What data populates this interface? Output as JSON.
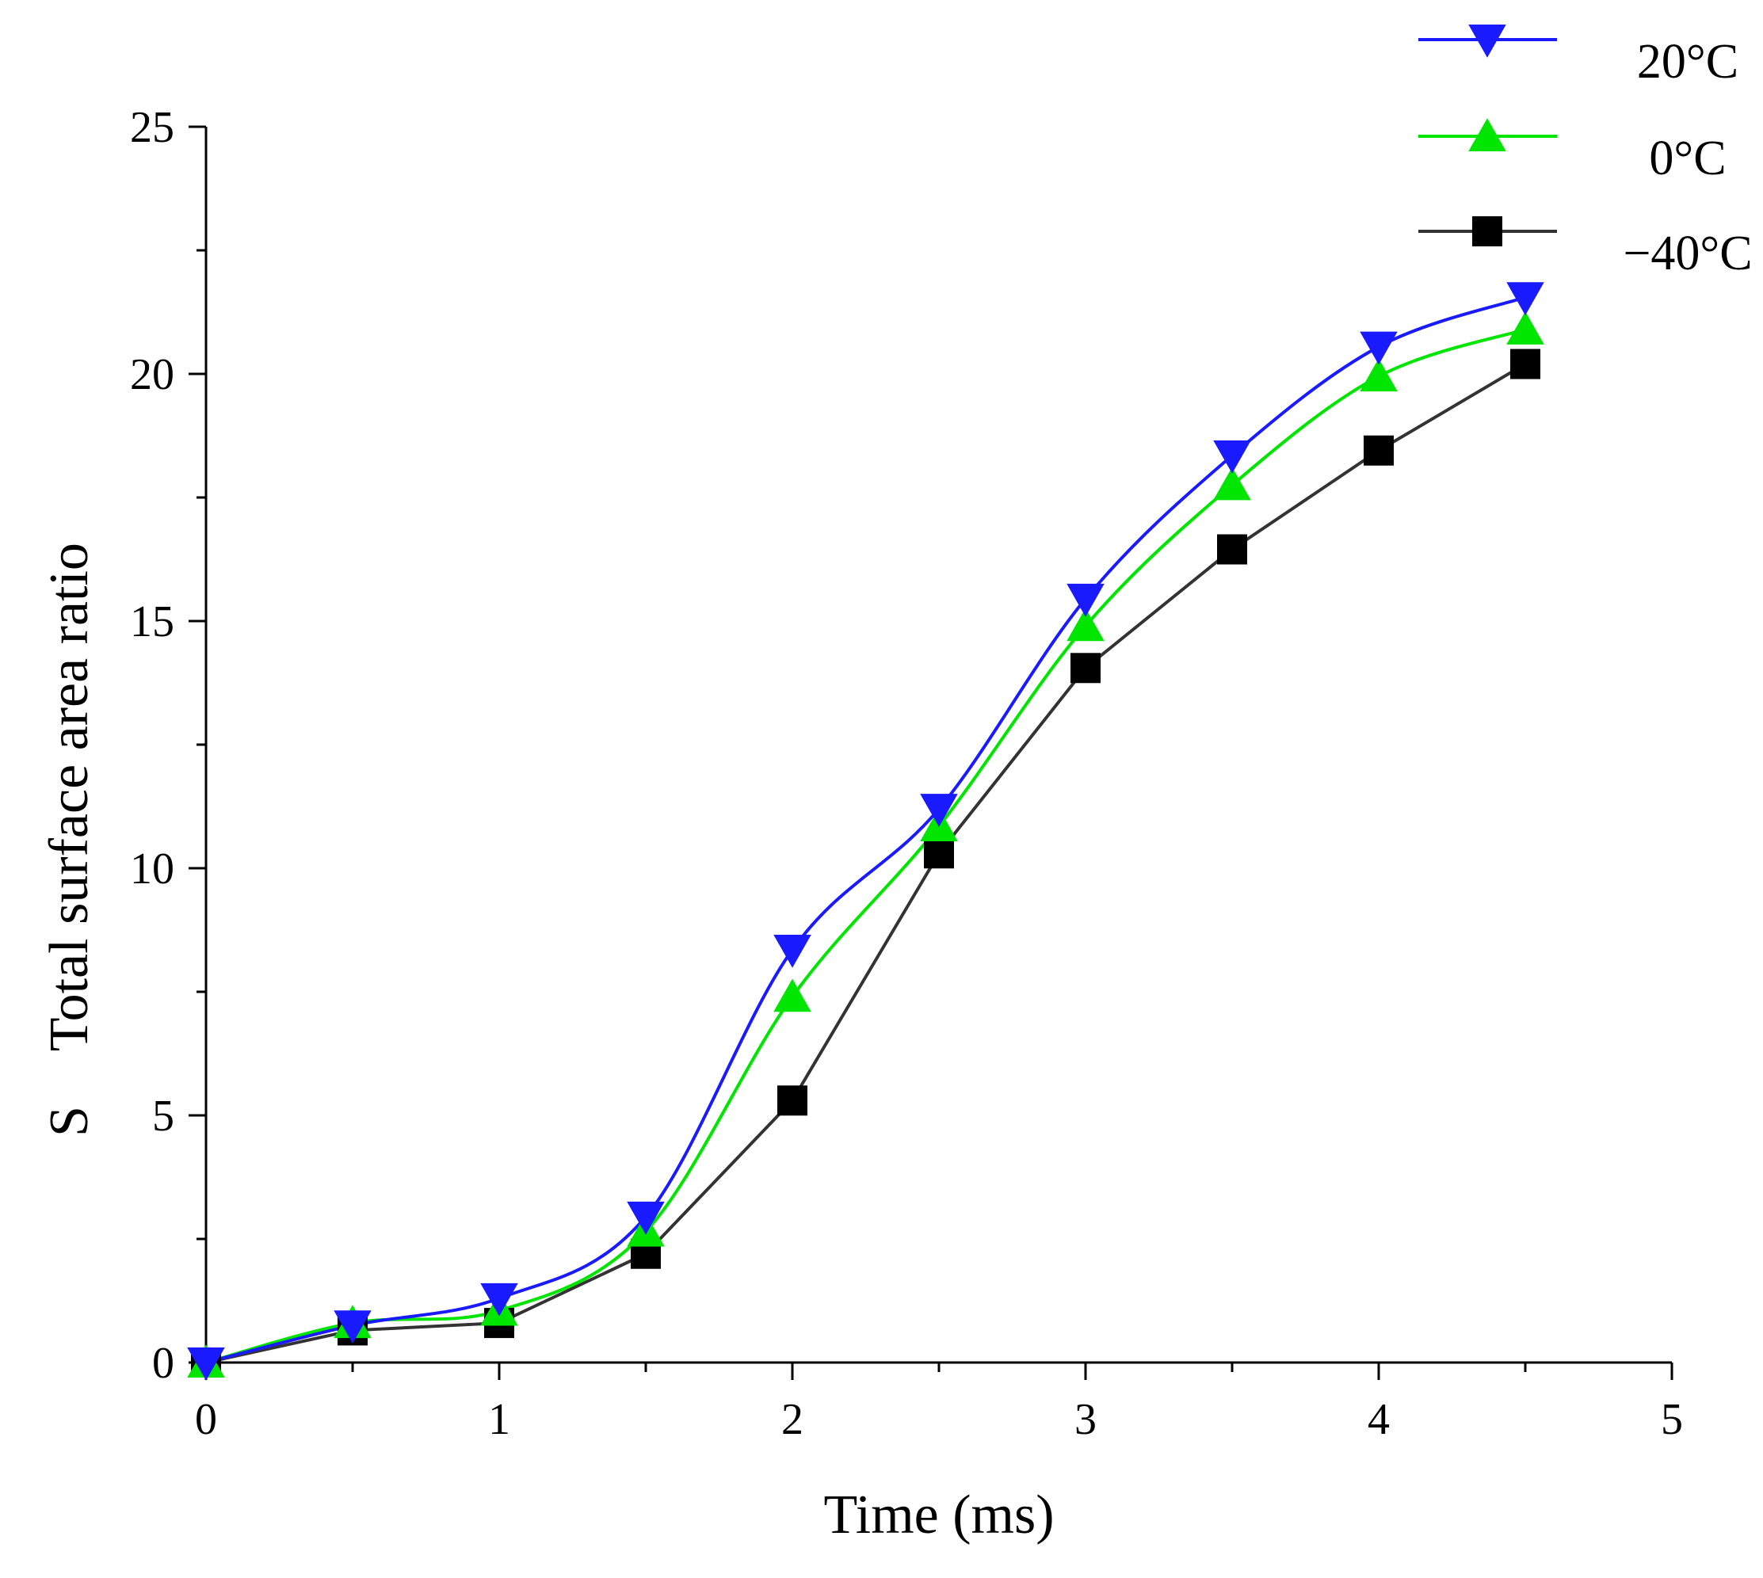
{
  "chart_data": {
    "type": "line",
    "title": "",
    "xlabel": "Time (ms)",
    "ylabel": "S    Total surface area ratio",
    "xlim": [
      0,
      5
    ],
    "ylim": [
      0,
      25
    ],
    "xticks": [
      0,
      1,
      2,
      3,
      4,
      5
    ],
    "yticks": [
      0,
      5,
      10,
      15,
      20,
      25
    ],
    "xtick_labels": [
      "0",
      "1",
      "2",
      "3",
      "4",
      "5"
    ],
    "ytick_labels": [
      "0",
      "5",
      "10",
      "15",
      "20",
      "25"
    ],
    "grid": false,
    "legend_position": "top-right",
    "x": [
      0,
      0.5,
      1,
      1.5,
      2,
      2.5,
      3,
      3.5,
      4,
      4.5
    ],
    "series": [
      {
        "name": "20°C",
        "color": "#1a1aff",
        "marker": "triangle-down",
        "values": [
          0.0,
          0.75,
          1.3,
          2.95,
          8.35,
          11.2,
          15.45,
          18.35,
          20.55,
          21.55
        ]
      },
      {
        "name": "0°C",
        "color": "#00e600",
        "marker": "triangle-up",
        "values": [
          0.0,
          0.8,
          1.05,
          2.65,
          7.4,
          10.85,
          14.9,
          17.75,
          19.95,
          20.9
        ]
      },
      {
        "name": "−40°C",
        "color": "#333333",
        "marker": "square",
        "values": [
          0.0,
          0.65,
          0.8,
          2.2,
          5.3,
          10.3,
          14.05,
          16.45,
          18.45,
          20.2
        ]
      }
    ]
  }
}
